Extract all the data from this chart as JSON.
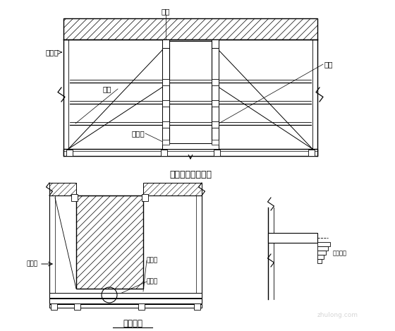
{
  "bg_color": "#ffffff",
  "line_color": "#000000",
  "title1": "梁模板支撑断面图",
  "title2": "梁配筋法",
  "label_jiao": "胶合板",
  "label_mu": "木方",
  "label_kou": "扣件",
  "label_gang": "钢管",
  "label_hai": "海绵条",
  "label_chuan": "穿孔管",
  "label_shui": "水平管",
  "label_mao": "毛大筋",
  "label_neili": "内力螺栓"
}
